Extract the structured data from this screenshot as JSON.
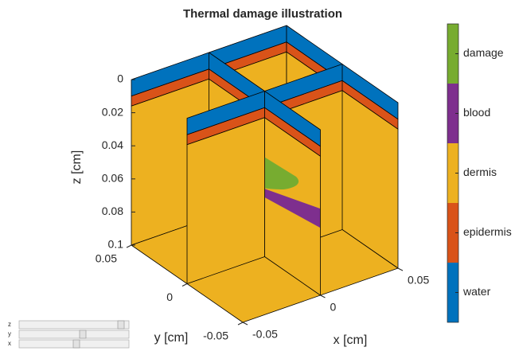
{
  "chart_data": {
    "type": "volume-slice",
    "title": "Thermal damage illustration",
    "x_label": "x [cm]",
    "y_label": "y [cm]",
    "z_label": "z [cm]",
    "xlim": [
      -0.05,
      0.05
    ],
    "xticks": [
      -0.05,
      0,
      0.05
    ],
    "ylim": [
      -0.05,
      0.05
    ],
    "yticks": [
      -0.05,
      0,
      0.05
    ],
    "zlim": [
      0,
      0.1
    ],
    "zticks": [
      0,
      0.02,
      0.04,
      0.06,
      0.08,
      0.1
    ],
    "colorbar": {
      "categories": [
        "water",
        "epidermis",
        "dermis",
        "blood",
        "damage"
      ],
      "colors": [
        "#0072BD",
        "#D95319",
        "#EDB120",
        "#7E2F8E",
        "#77AC30"
      ]
    },
    "sliders": [
      "z",
      "y",
      "x"
    ]
  }
}
